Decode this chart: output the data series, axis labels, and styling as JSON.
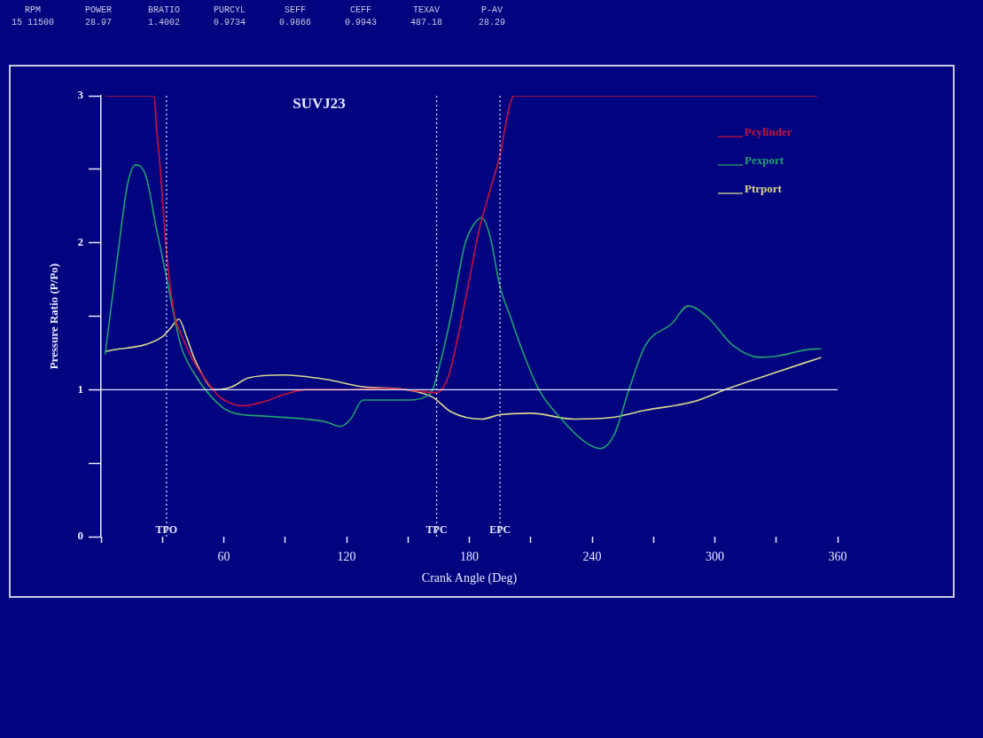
{
  "chart_data": {
    "type": "line",
    "title": "SUVJ23",
    "xlabel": "Crank Angle (Deg)",
    "ylabel": "Pressure Ratio (P/Po)",
    "annotations": [
      "RPM",
      "POWER",
      "BRATIO",
      "PURCYL",
      "SEFF",
      "CEFF",
      "TEXAV",
      "P-AV",
      "15 11500",
      "28.97",
      "1.4002",
      "0.9734",
      "0.9866",
      "0.9943",
      "487.18",
      "28.29"
    ],
    "xlim": [
      0,
      360
    ],
    "ylim": [
      0,
      3
    ],
    "xticks": [
      {
        "value": 0,
        "label": null
      },
      {
        "value": 30,
        "label": null
      },
      60,
      {
        "value": 90,
        "label": null
      },
      120,
      {
        "value": 150,
        "label": null
      },
      180,
      {
        "value": 210,
        "label": null
      },
      240,
      {
        "value": 270,
        "label": null
      },
      300,
      {
        "value": 330,
        "label": null
      },
      360
    ],
    "yticks": [
      0,
      {
        "value": 0.5,
        "label": null
      },
      1,
      {
        "value": 1.5,
        "label": null
      },
      2,
      {
        "value": 2.5,
        "label": null
      },
      3
    ],
    "grid": false,
    "legend": "top right",
    "marker": "none",
    "line_style": "solid",
    "ref_lines": [
      {
        "axis": "y",
        "value": 1,
        "color": "#e8e8ff",
        "line_style": "solid"
      },
      {
        "axis": "x",
        "value": 32,
        "label": "TPO",
        "color": "#e8e8ff",
        "line_style": "dotted"
      },
      {
        "axis": "x",
        "value": 164,
        "label": "TPC",
        "color": "#e8e8ff",
        "line_style": "dotted"
      },
      {
        "axis": "x",
        "value": 195,
        "label": "EPC",
        "color": "#e8e8ff",
        "line_style": "dotted"
      }
    ],
    "series": [
      {
        "name": "Pcylinder",
        "color": "#c8143c",
        "x": [
          2,
          26,
          27,
          29,
          31,
          33,
          36,
          40,
          45,
          52,
          58,
          65,
          69,
          80,
          90,
          100,
          120,
          140,
          155,
          164,
          170,
          175,
          180,
          185,
          190,
          195,
          200,
          202,
          350
        ],
        "values": [
          3,
          3,
          2.8,
          2.5,
          2.1,
          1.8,
          1.5,
          1.35,
          1.2,
          1.05,
          0.95,
          0.9,
          0.89,
          0.92,
          0.97,
          1.0,
          1.0,
          1.01,
          0.99,
          0.98,
          1.1,
          1.4,
          1.75,
          2.1,
          2.35,
          2.6,
          2.95,
          3,
          3
        ]
      },
      {
        "name": "Pexport",
        "color": "#20a070",
        "x": [
          2,
          8,
          13,
          17,
          22,
          27,
          31.5,
          35,
          39,
          46,
          54,
          63,
          80,
          100,
          110,
          117,
          122,
          128,
          140,
          151,
          158,
          162,
          167,
          171,
          178,
          182,
          186,
          190,
          195,
          200,
          205,
          214,
          225,
          236,
          244,
          251,
          258,
          266,
          279,
          287,
          296,
          309,
          322,
          331,
          344,
          352
        ],
        "values": [
          1.24,
          1.9,
          2.4,
          2.53,
          2.45,
          2.1,
          1.8,
          1.55,
          1.3,
          1.1,
          0.95,
          0.85,
          0.82,
          0.8,
          0.78,
          0.75,
          0.8,
          0.93,
          0.93,
          0.93,
          0.95,
          1.0,
          1.25,
          1.5,
          2.0,
          2.12,
          2.17,
          2.05,
          1.7,
          1.5,
          1.3,
          1.0,
          0.8,
          0.65,
          0.6,
          0.7,
          1.0,
          1.3,
          1.45,
          1.57,
          1.5,
          1.3,
          1.22,
          1.23,
          1.27,
          1.28
        ]
      },
      {
        "name": "Ptrport",
        "color": "#d8d890",
        "x": [
          2,
          30,
          34,
          38,
          42,
          46,
          56,
          64,
          72,
          89,
          110,
          128,
          149,
          162,
          171,
          186,
          195,
          210,
          231,
          249,
          266,
          290,
          305,
          326,
          352
        ],
        "values": [
          1.26,
          1.36,
          1.42,
          1.48,
          1.35,
          1.2,
          1.0,
          1.02,
          1.08,
          1.1,
          1.07,
          1.02,
          1.0,
          0.95,
          0.85,
          0.8,
          0.83,
          0.84,
          0.8,
          0.81,
          0.86,
          0.92,
          1.0,
          1.1,
          1.22
        ]
      }
    ]
  }
}
